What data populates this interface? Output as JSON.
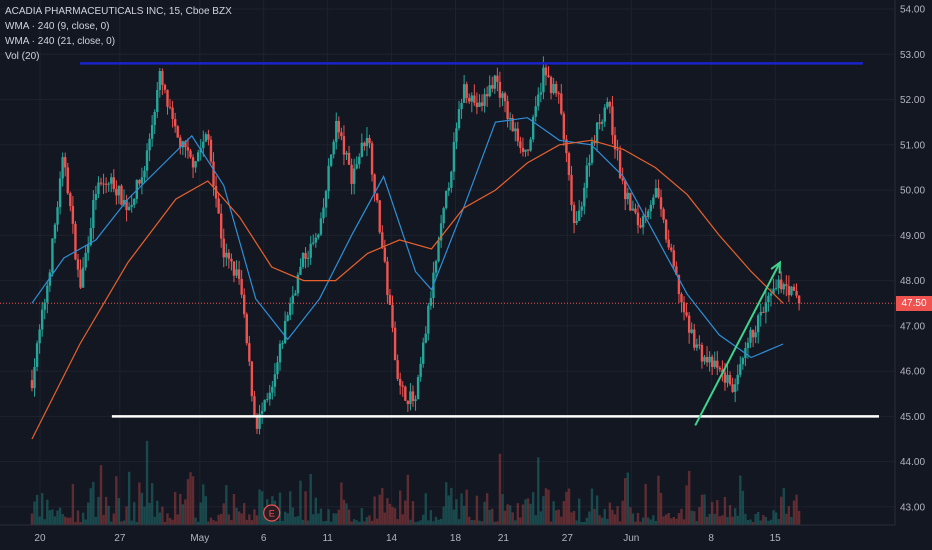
{
  "legend": {
    "symbol": "ACADIA PHARMACEUTICALS INC, 15, Cboe BZX",
    "wma9": "WMA · 240 (9, close, 0)",
    "wma21": "WMA · 240 (21, close, 0)",
    "vol": "Vol (20)"
  },
  "current_price_label": "47.50",
  "event_marker": "E",
  "colors": {
    "background": "#131722",
    "grid": "#1e222d",
    "up": "#26a69a",
    "down": "#ef5350",
    "wma_fast": "#2e8fd8",
    "wma_slow": "#e8612d",
    "resistance": "#1a23c9",
    "support": "#ffffff",
    "trend_arrow": "#3fd48c",
    "price_line": "#ef5350"
  },
  "chart_data": {
    "type": "candlestick",
    "title": "ACADIA PHARMACEUTICALS INC, 15, Cboe BZX",
    "y_ticks": [
      43.0,
      44.0,
      45.0,
      46.0,
      47.0,
      48.0,
      49.0,
      50.0,
      51.0,
      52.0,
      53.0,
      54.0
    ],
    "y_tick_labels": [
      "43.00",
      "44.00",
      "45.00",
      "46.00",
      "47.00",
      "48.00",
      "49.00",
      "50.00",
      "51.00",
      "52.00",
      "53.00",
      "54.00"
    ],
    "ylim": [
      42.6,
      54.2
    ],
    "x_tick_labels": [
      "20",
      "27",
      "May",
      "6",
      "11",
      "14",
      "18",
      "21",
      "27",
      "Jun",
      "8",
      "15"
    ],
    "x_ticks": [
      0.5,
      5.5,
      10.5,
      14.5,
      18.5,
      22.5,
      26.5,
      29.5,
      33.5,
      37.5,
      42.5,
      46.5
    ],
    "xlim": [
      -2,
      54
    ],
    "last_close": 47.5,
    "price_path": [
      [
        0,
        45.8
      ],
      [
        1,
        48.0
      ],
      [
        2,
        50.8
      ],
      [
        3,
        47.8
      ],
      [
        4,
        50.0
      ],
      [
        5,
        50.2
      ],
      [
        6,
        49.6
      ],
      [
        7,
        50.4
      ],
      [
        8,
        52.5
      ],
      [
        9,
        51.2
      ],
      [
        10,
        50.6
      ],
      [
        11,
        51.2
      ],
      [
        12,
        48.6
      ],
      [
        13,
        48.0
      ],
      [
        14,
        44.8
      ],
      [
        15,
        45.5
      ],
      [
        16,
        47.3
      ],
      [
        17,
        48.5
      ],
      [
        18,
        49.0
      ],
      [
        19,
        51.5
      ],
      [
        20,
        50.3
      ],
      [
        21,
        51.3
      ],
      [
        22,
        48.5
      ],
      [
        23,
        45.6
      ],
      [
        24,
        45.3
      ],
      [
        25,
        47.8
      ],
      [
        26,
        50.0
      ],
      [
        27,
        52.3
      ],
      [
        28,
        51.8
      ],
      [
        29,
        52.5
      ],
      [
        30,
        51.4
      ],
      [
        31,
        50.8
      ],
      [
        32,
        52.6
      ],
      [
        33,
        52.0
      ],
      [
        34,
        49.0
      ],
      [
        35,
        51.0
      ],
      [
        36,
        52.0
      ],
      [
        37,
        50.0
      ],
      [
        38,
        49.2
      ],
      [
        39,
        50.0
      ],
      [
        40,
        48.5
      ],
      [
        41,
        47.0
      ],
      [
        42,
        46.3
      ],
      [
        43,
        46.0
      ],
      [
        44,
        45.6
      ],
      [
        45,
        46.8
      ],
      [
        46,
        47.5
      ],
      [
        47,
        48.0
      ],
      [
        48,
        47.5
      ]
    ],
    "series": [
      {
        "name": "WMA · 240 (9, close, 0)",
        "values": [
          [
            0,
            47.5
          ],
          [
            2,
            48.5
          ],
          [
            4,
            48.9
          ],
          [
            6,
            49.8
          ],
          [
            8,
            50.5
          ],
          [
            10,
            51.2
          ],
          [
            12,
            50.1
          ],
          [
            14,
            47.6
          ],
          [
            16,
            46.7
          ],
          [
            18,
            47.6
          ],
          [
            20,
            49.0
          ],
          [
            22,
            50.3
          ],
          [
            24,
            48.2
          ],
          [
            25,
            47.8
          ],
          [
            27,
            49.6
          ],
          [
            29,
            51.5
          ],
          [
            31,
            51.6
          ],
          [
            33,
            51.1
          ],
          [
            35,
            51.0
          ],
          [
            37,
            50.3
          ],
          [
            39,
            49.0
          ],
          [
            41,
            47.7
          ],
          [
            43,
            46.8
          ],
          [
            45,
            46.3
          ],
          [
            47,
            46.6
          ]
        ]
      },
      {
        "name": "WMA · 240 (21, close, 0)",
        "values": [
          [
            0,
            44.5
          ],
          [
            3,
            46.6
          ],
          [
            6,
            48.4
          ],
          [
            9,
            49.8
          ],
          [
            11,
            50.2
          ],
          [
            13,
            49.4
          ],
          [
            15,
            48.3
          ],
          [
            17,
            48.0
          ],
          [
            19,
            48.0
          ],
          [
            21,
            48.6
          ],
          [
            23,
            48.9
          ],
          [
            25,
            48.7
          ],
          [
            27,
            49.6
          ],
          [
            29,
            50.0
          ],
          [
            31,
            50.6
          ],
          [
            33,
            51.0
          ],
          [
            35,
            51.1
          ],
          [
            37,
            50.9
          ],
          [
            39,
            50.5
          ],
          [
            41,
            49.9
          ],
          [
            43,
            49.0
          ],
          [
            45,
            48.2
          ],
          [
            47,
            47.5
          ]
        ]
      }
    ],
    "annotations": {
      "resistance": {
        "y": 52.8,
        "x_from": 3,
        "x_to": 52
      },
      "support": {
        "y": 45.0,
        "x_from": 5,
        "x_to": 53
      },
      "trendline": {
        "from": [
          41.5,
          44.8
        ],
        "to": [
          46.8,
          48.4
        ]
      }
    },
    "event_x": 15
  }
}
